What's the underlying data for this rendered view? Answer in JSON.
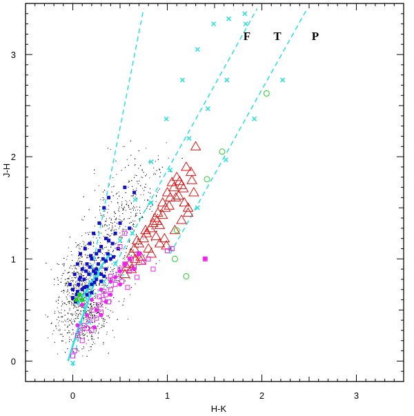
{
  "chart_data": {
    "type": "scatter",
    "xlabel": "H-K",
    "ylabel": "J-H",
    "xlim": [
      -0.5,
      3.5
    ],
    "ylim": [
      -0.2,
      3.5
    ],
    "x_ticks": [
      0,
      1,
      2,
      3
    ],
    "y_ticks": [
      0,
      1,
      2,
      3
    ],
    "x_tick_labels": [
      "0",
      "1",
      "2",
      "3"
    ],
    "y_tick_labels": [
      "0",
      "1",
      "2",
      "3"
    ],
    "grid": false,
    "annotations": [
      {
        "text": "F",
        "x": 1.8,
        "y": 3.2
      },
      {
        "text": "T",
        "x": 2.12,
        "y": 3.2
      },
      {
        "text": "P",
        "x": 2.52,
        "y": 3.2
      }
    ],
    "colors": {
      "field": "#000000",
      "reddening": "#22e0e0",
      "class_ii": "#dd1111",
      "class_i": "#22cc22",
      "blue_sq": "#1010c8",
      "magenta": "#ee22ee"
    },
    "reddening_lines": [
      {
        "x": [
          0.0,
          0.75
        ],
        "y": [
          -0.05,
          3.45
        ]
      },
      {
        "x": [
          0.45,
          1.95
        ],
        "y": [
          0.95,
          3.45
        ]
      },
      {
        "x": [
          1.03,
          2.48
        ],
        "y": [
          1.05,
          3.45
        ]
      }
    ],
    "reddening_markers": [
      {
        "x": [
          0.0,
          0.17,
          0.33,
          0.5,
          0.66,
          0.83,
          0.99,
          1.16,
          1.32,
          1.49,
          1.65,
          1.82
        ],
        "y": [
          -0.02,
          0.38,
          0.78,
          1.18,
          1.58,
          1.95,
          2.37,
          2.75,
          3.05,
          3.3,
          3.35,
          3.4
        ]
      },
      {
        "x": [
          0.45,
          0.63,
          0.83,
          1.03,
          1.23,
          1.43,
          1.63,
          1.83
        ],
        "y": [
          0.95,
          1.25,
          1.55,
          1.87,
          2.18,
          2.47,
          2.75,
          3.3
        ]
      },
      {
        "x": [
          1.03,
          1.32,
          1.62,
          1.92,
          2.22
        ],
        "y": [
          1.1,
          1.5,
          1.97,
          2.37,
          2.75
        ]
      }
    ],
    "ctts_locus": {
      "x": [
        0.05,
        0.72
      ],
      "y": [
        0.55,
        0.95
      ]
    },
    "dwarf_locus": {
      "x": [
        -0.05,
        0.05,
        0.15,
        0.2,
        0.25,
        0.28
      ],
      "y": [
        0.0,
        0.3,
        0.55,
        0.7,
        0.8,
        0.87
      ]
    },
    "giant_locus": {
      "x": [
        0.05,
        0.15,
        0.25,
        0.35,
        0.4
      ],
      "y": [
        0.55,
        0.7,
        0.85,
        1.0,
        1.05
      ]
    },
    "series": [
      {
        "name": "",
        "marker": "open-triangle",
        "x": [
          0.55,
          0.57,
          0.6,
          0.62,
          0.65,
          0.66,
          0.7,
          0.72,
          0.75,
          0.78,
          0.8,
          0.82,
          0.85,
          0.87,
          0.88,
          0.9,
          0.92,
          0.95,
          0.98,
          1.0,
          1.03,
          1.05,
          1.07,
          1.1,
          1.12,
          1.15,
          1.18,
          1.2,
          1.22,
          1.25,
          1.28,
          1.3,
          1.22,
          1.15,
          1.08,
          0.97,
          0.92,
          0.83,
          0.72,
          0.62,
          0.68,
          0.77,
          0.89,
          0.95,
          1.02,
          1.09,
          1.17,
          1.26,
          1.13,
          0.99
        ],
        "y": [
          0.85,
          0.92,
          0.95,
          1.05,
          1.1,
          1.0,
          1.15,
          1.02,
          1.2,
          1.25,
          1.1,
          1.3,
          1.35,
          1.4,
          1.22,
          1.45,
          1.33,
          1.55,
          1.5,
          1.65,
          1.6,
          1.75,
          1.7,
          1.8,
          1.62,
          1.72,
          1.55,
          1.9,
          1.5,
          1.85,
          1.65,
          2.1,
          1.45,
          1.38,
          1.28,
          1.2,
          1.15,
          1.05,
          0.98,
          0.9,
          1.18,
          1.28,
          1.37,
          1.43,
          1.52,
          1.6,
          1.69,
          1.77,
          1.76,
          1.13
        ]
      },
      {
        "name": "",
        "marker": "open-circle",
        "x": [
          2.05,
          1.58,
          1.42,
          1.1,
          1.08,
          1.2
        ],
        "y": [
          2.62,
          2.05,
          1.78,
          1.28,
          1.0,
          0.83
        ]
      },
      {
        "name": "",
        "marker": "filled-square",
        "x": [
          -0.03,
          0.0,
          0.02,
          0.04,
          0.05,
          0.06,
          0.08,
          0.1,
          0.1,
          0.12,
          0.13,
          0.15,
          0.15,
          0.17,
          0.18,
          0.2,
          0.2,
          0.22,
          0.22,
          0.25,
          0.25,
          0.27,
          0.28,
          0.3,
          0.3,
          0.32,
          0.33,
          0.35,
          0.35,
          0.37,
          0.38,
          0.4,
          0.42,
          0.45,
          0.48,
          0.5,
          0.55,
          0.6,
          0.65,
          0.0,
          0.05,
          0.1,
          0.15,
          0.2,
          0.25,
          0.3,
          0.35,
          0.08,
          0.12,
          0.18,
          0.23,
          0.28,
          0.33,
          0.38,
          0.43,
          0.03,
          0.07,
          0.14,
          0.19,
          0.24
        ],
        "y": [
          0.75,
          0.7,
          0.85,
          0.65,
          0.95,
          0.75,
          1.05,
          0.7,
          0.9,
          0.8,
          1.1,
          0.65,
          0.95,
          0.85,
          1.15,
          0.75,
          1.0,
          0.88,
          1.25,
          0.8,
          1.05,
          0.95,
          1.35,
          0.85,
          1.12,
          1.0,
          1.5,
          0.9,
          1.2,
          1.05,
          1.6,
          1.0,
          1.15,
          1.25,
          1.1,
          1.35,
          1.7,
          1.3,
          1.65,
          0.62,
          0.68,
          0.6,
          0.73,
          0.67,
          0.9,
          0.78,
          0.98,
          0.82,
          0.72,
          0.92,
          0.77,
          1.08,
          0.83,
          1.18,
          1.02,
          0.58,
          0.8,
          0.88,
          1.03,
          0.86
        ]
      },
      {
        "name": "",
        "marker": "open-square",
        "x": [
          0.0,
          0.02,
          0.05,
          0.08,
          0.1,
          0.12,
          0.15,
          0.18,
          0.2,
          0.22,
          0.25,
          0.28,
          0.3,
          0.32,
          0.35,
          0.38,
          0.4,
          0.42,
          0.45,
          0.48,
          0.5,
          0.52,
          0.55,
          0.58,
          0.6,
          0.62,
          0.65,
          0.68,
          0.7,
          0.75,
          0.8,
          0.85,
          1.0,
          1.05,
          1.4,
          0.28,
          0.33,
          0.4,
          0.5,
          0.55
        ],
        "y": [
          0.05,
          0.1,
          0.25,
          0.3,
          0.2,
          0.35,
          0.32,
          0.4,
          0.3,
          0.5,
          0.42,
          0.55,
          0.48,
          0.6,
          0.65,
          0.58,
          0.7,
          0.8,
          0.75,
          0.85,
          0.9,
          0.78,
          0.95,
          0.72,
          0.88,
          1.0,
          0.92,
          0.82,
          1.05,
          0.97,
          1.0,
          0.9,
          1.08,
          1.1,
          1.0,
          0.63,
          0.68,
          0.83,
          1.12,
          1.25
        ]
      },
      {
        "name": "",
        "marker": "filled-circle",
        "x": [
          0.05,
          0.1,
          0.15,
          0.2,
          0.25,
          0.3,
          0.35,
          0.4,
          0.45,
          0.5,
          0.55,
          0.6,
          0.65,
          0.7,
          0.3,
          0.4,
          0.5,
          1.4,
          0.23
        ],
        "y": [
          0.35,
          0.55,
          0.45,
          0.6,
          0.5,
          0.7,
          0.58,
          0.78,
          0.82,
          0.88,
          0.95,
          1.0,
          0.9,
          1.05,
          0.45,
          0.65,
          0.75,
          1.0,
          0.33
        ]
      },
      {
        "name": "",
        "marker": "filled-square-green",
        "x": [
          0.04,
          0.07,
          0.1
        ],
        "y": [
          0.6,
          0.65,
          0.6
        ]
      }
    ]
  }
}
